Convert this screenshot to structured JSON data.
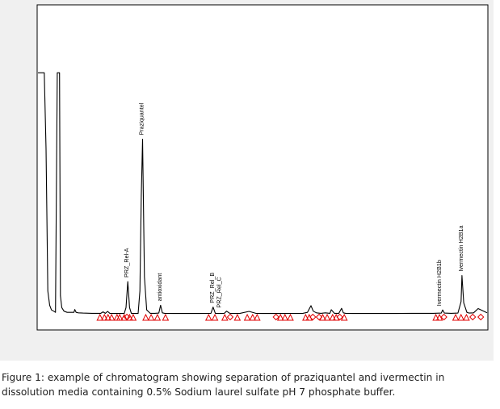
{
  "caption": "Figure 1: example of chromatogram showing separation of praziquantel and ivermectin in dissolution media containing 0.5% Sodium laurel sulfate pH 7 phosphate buffer.",
  "colors": {
    "panel_background": "#f0f0f0",
    "plot_background": "#ffffff",
    "trace": "#000000",
    "integration_marker": "#e00000"
  },
  "chart_data": {
    "type": "line",
    "title": "",
    "xlabel": "",
    "ylabel": "",
    "xlim": [
      0,
      100
    ],
    "ylim": [
      0,
      100
    ],
    "grid": false,
    "axis_ticks": false,
    "legend": "none",
    "trace": {
      "x": [
        0,
        0.6,
        1.2,
        1.4,
        1.8,
        2.2,
        2.6,
        3.0,
        3.5,
        3.9,
        4.3,
        4.6,
        4.8,
        5.0,
        5.3,
        5.8,
        6.5,
        7,
        8,
        8.2,
        8.5,
        9,
        10,
        12,
        14,
        14.5,
        15,
        15.5,
        16,
        17,
        18,
        19.2,
        19.6,
        20.0,
        20.4,
        20.8,
        21.5,
        22.3,
        22.7,
        23.0,
        23.3,
        23.7,
        24.2,
        25.0,
        26.0,
        26.9,
        27.3,
        27.7,
        28.2,
        30,
        33,
        36,
        38.5,
        39.0,
        39.5,
        40.2,
        41.5,
        42.0,
        42.6,
        43,
        45,
        47,
        48.5,
        50,
        52,
        55,
        59,
        60,
        60.8,
        61.3,
        62,
        63,
        64,
        65,
        65.3,
        66,
        67,
        67.6,
        68,
        68.5,
        70,
        75,
        80,
        85,
        88,
        89.8,
        90.1,
        90.5,
        92,
        93.5,
        94.2,
        94.4,
        94.8,
        95.5,
        96,
        97,
        98,
        100
      ],
      "y": [
        104,
        104,
        104,
        104,
        72,
        12,
        6,
        4,
        3.5,
        3,
        104,
        104,
        104,
        10,
        5,
        3.5,
        3,
        3,
        3,
        4.2,
        3,
        2.8,
        2.7,
        2.6,
        2.6,
        3.2,
        2.6,
        3.4,
        2.6,
        2.5,
        2.5,
        2.5,
        5,
        16,
        5,
        2.6,
        2.5,
        2.5,
        12,
        52,
        76,
        18,
        4,
        2.6,
        2.6,
        2.7,
        6,
        2.8,
        2.6,
        2.5,
        2.5,
        2.5,
        2.6,
        5.2,
        2.6,
        2.5,
        2.6,
        3.5,
        2.7,
        2.5,
        2.6,
        3.4,
        2.6,
        2.5,
        2.5,
        2.5,
        2.6,
        3,
        5.8,
        3.5,
        2.8,
        2.6,
        2.8,
        2.6,
        4.1,
        2.6,
        2.6,
        4.7,
        2.8,
        2.6,
        2.5,
        2.5,
        2.5,
        2.6,
        2.6,
        2.7,
        4,
        2.7,
        2.6,
        2.7,
        7.5,
        18.5,
        7,
        3,
        2.7,
        2.8,
        4.6,
        2.8
      ]
    },
    "peak_labels": [
      {
        "text": "Praziquantel",
        "x": 23.3,
        "y": 76
      },
      {
        "text": "PRZ_Rel-A",
        "x": 20.0,
        "y": 16
      },
      {
        "text": "antioxidant",
        "x": 27.3,
        "y": 6
      },
      {
        "text": "PRZ_Rel_B",
        "x": 39.0,
        "y": 5.2
      },
      {
        "text": "PRZ_Rel_C",
        "x": 40.6,
        "y": 3.2
      },
      {
        "text": "Ivermectin H2B1b",
        "x": 89.6,
        "y": 4
      },
      {
        "text": "Ivermectin H2B1a",
        "x": 94.4,
        "y": 18.5
      }
    ],
    "integration_markers": {
      "triangles": [
        13.8,
        14.8,
        15.6,
        16.4,
        17.6,
        18.2,
        19.2,
        20.4,
        21.2,
        24.0,
        25.2,
        26.6,
        28.4,
        38.0,
        39.4,
        41.6,
        44.4,
        46.6,
        47.8,
        48.8,
        54.0,
        55.0,
        56.2,
        59.6,
        60.4,
        63.4,
        64.4,
        65.6,
        66.4,
        68.2,
        88.6,
        89.4,
        93.0,
        94.2,
        95.4
      ],
      "diamonds": [
        19.8,
        42.8,
        53.0,
        61.2,
        62.6,
        67.2,
        90.4,
        96.8,
        98.6
      ]
    }
  }
}
